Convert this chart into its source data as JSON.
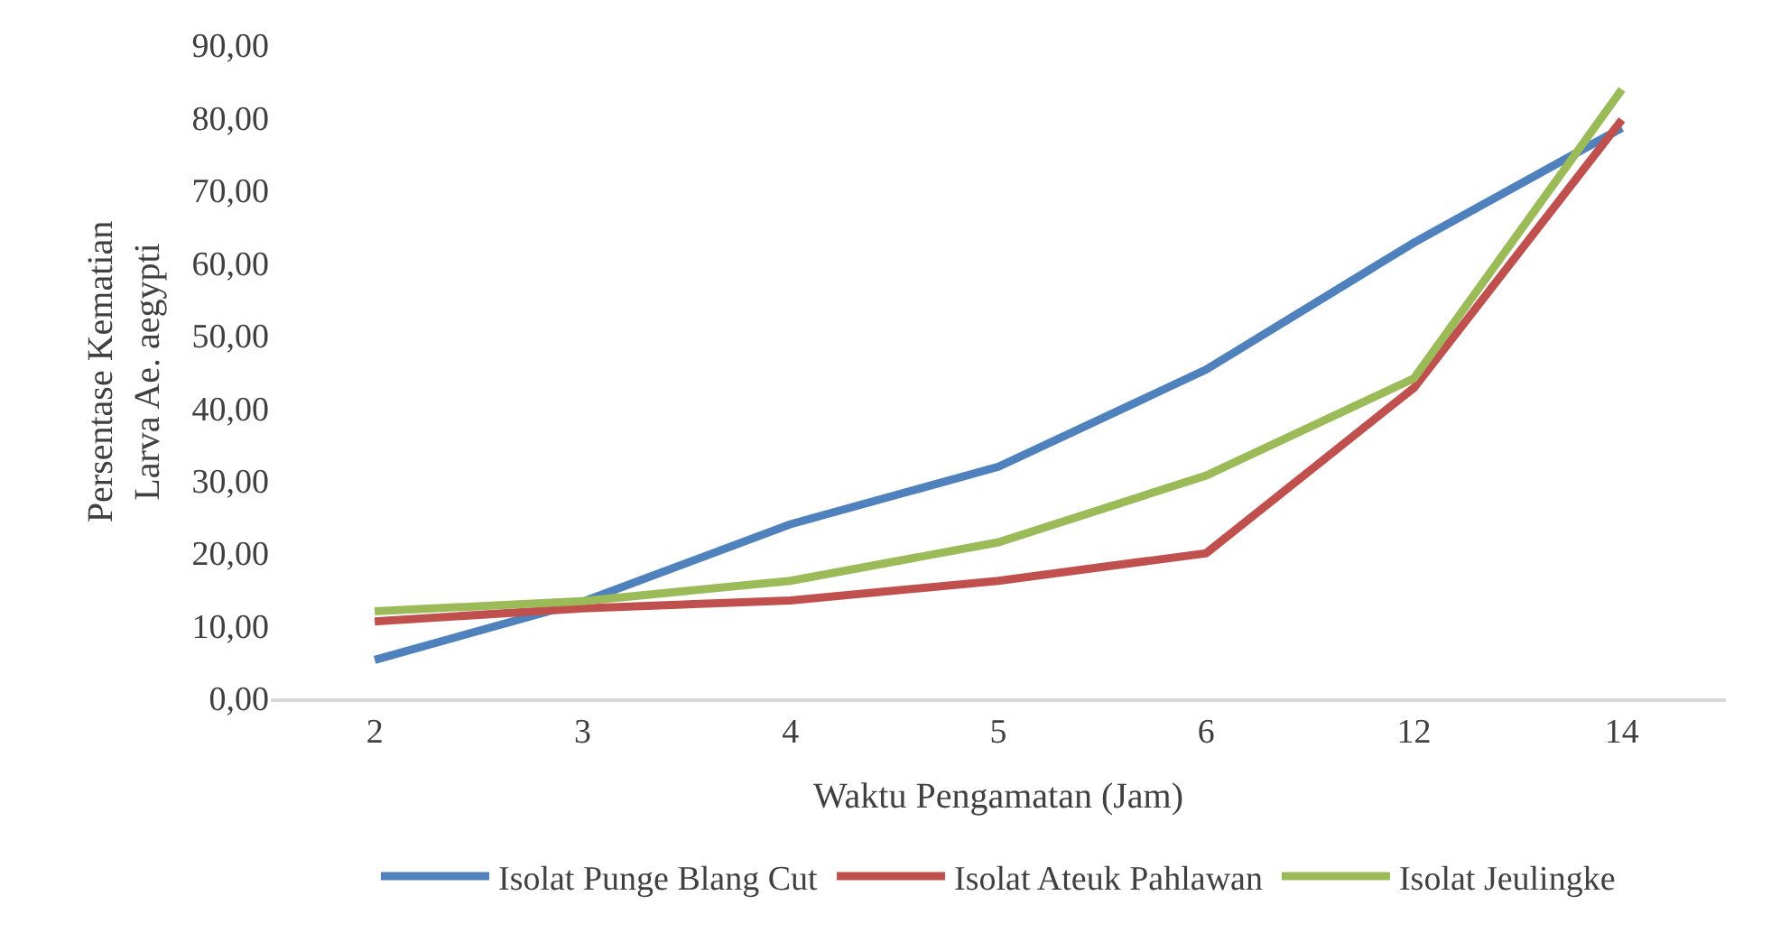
{
  "chart_data": {
    "type": "line",
    "xlabel": "Waktu Pengamatan (Jam)",
    "ylabel": "Persentase Kematian\nLarva Ae. aegypti",
    "categories": [
      "2",
      "3",
      "4",
      "5",
      "6",
      "12",
      "14"
    ],
    "series": [
      {
        "name": "Isolat Punge Blang Cut",
        "color": "#4f81bd",
        "values": [
          5.3,
          13.3,
          24.0,
          31.9,
          45.3,
          62.8,
          78.6
        ]
      },
      {
        "name": "Isolat Ateuk Pahlawan",
        "color": "#c0504d",
        "values": [
          10.6,
          12.4,
          13.5,
          16.2,
          20.0,
          42.8,
          79.7
        ]
      },
      {
        "name": "Isolat Jeulingke",
        "color": "#9bbb59",
        "values": [
          12.0,
          13.4,
          16.2,
          21.5,
          30.7,
          44.1,
          83.9
        ]
      }
    ],
    "ylim": [
      0,
      90
    ],
    "yticks": [
      {
        "value": 0,
        "label": "0,00"
      },
      {
        "value": 10,
        "label": "10,00"
      },
      {
        "value": 20,
        "label": "20,00"
      },
      {
        "value": 30,
        "label": "30,00"
      },
      {
        "value": 40,
        "label": "40,00"
      },
      {
        "value": 50,
        "label": "50,00"
      },
      {
        "value": 60,
        "label": "60,00"
      },
      {
        "value": 70,
        "label": "70,00"
      },
      {
        "value": 80,
        "label": "80,00"
      },
      {
        "value": 90,
        "label": "90,00"
      }
    ],
    "grid": false,
    "legend": "bottom",
    "marker": "none",
    "line_style": "solid"
  }
}
